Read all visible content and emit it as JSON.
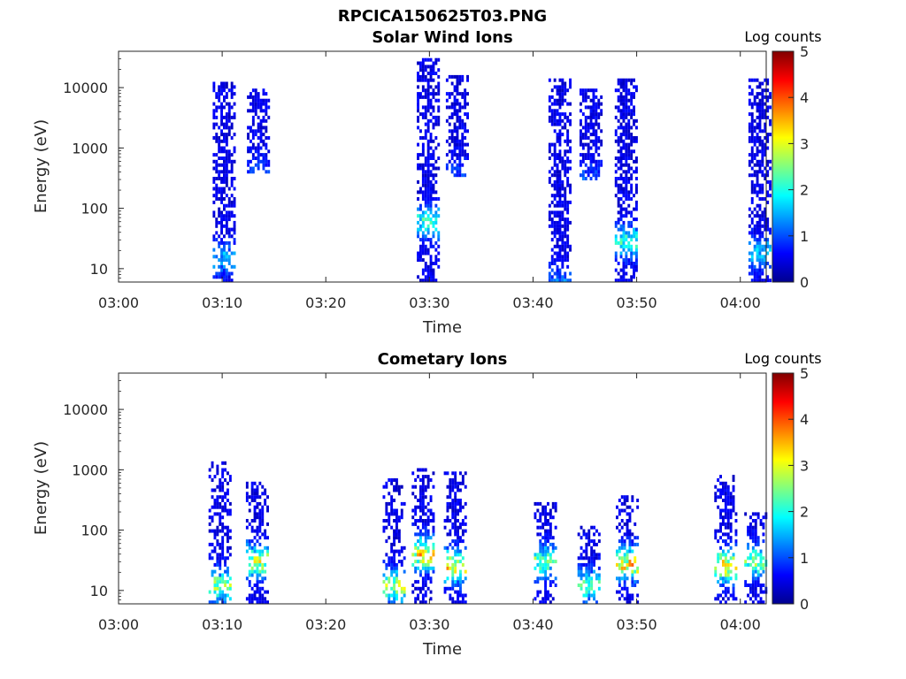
{
  "figure": {
    "title": "RPCICA150625T03.PNG"
  },
  "chart_data": [
    {
      "type": "heatmap",
      "title": "Solar Wind Ions",
      "xlabel": "Time",
      "ylabel": "Energy (eV)",
      "x_tick_labels": [
        "03:00",
        "03:10",
        "03:20",
        "03:30",
        "03:40",
        "03:50",
        "04:00"
      ],
      "y_tick_labels": [
        "10",
        "100",
        "1000",
        "10000"
      ],
      "xlim": [
        "03:00",
        "04:02.5"
      ],
      "ylim": [
        6,
        40000
      ],
      "y_scale": "log",
      "colorbar": {
        "label": "Log counts",
        "range": [
          0,
          5
        ],
        "ticks": [
          "0",
          "1",
          "2",
          "3",
          "4",
          "5"
        ],
        "colormap": "jet"
      },
      "bursts": [
        {
          "time_min": 10.2,
          "energy_range_eV": [
            6,
            13000
          ],
          "peak_log_counts": 1.3,
          "low_energy_peak_eV": 15
        },
        {
          "time_min": 13.5,
          "energy_range_eV": [
            400,
            10000
          ],
          "peak_log_counts": 0.6
        },
        {
          "time_min": 29.9,
          "energy_range_eV": [
            6,
            30000
          ],
          "peak_log_counts": 1.9,
          "low_energy_peak_eV": 60
        },
        {
          "time_min": 32.7,
          "energy_range_eV": [
            350,
            16000
          ],
          "peak_log_counts": 0.5
        },
        {
          "time_min": 42.6,
          "energy_range_eV": [
            6,
            14000
          ],
          "peak_log_counts": 0.9
        },
        {
          "time_min": 45.6,
          "energy_range_eV": [
            300,
            10000
          ],
          "peak_log_counts": 0.6
        },
        {
          "time_min": 49.0,
          "energy_range_eV": [
            6,
            14000
          ],
          "peak_log_counts": 1.9,
          "low_energy_peak_eV": 28
        },
        {
          "time_min": 61.9,
          "energy_range_eV": [
            6,
            14000
          ],
          "peak_log_counts": 1.4,
          "low_energy_peak_eV": 18
        }
      ]
    },
    {
      "type": "heatmap",
      "title": "Cometary Ions",
      "xlabel": "Time",
      "ylabel": "Energy (eV)",
      "x_tick_labels": [
        "03:00",
        "03:10",
        "03:20",
        "03:30",
        "03:40",
        "03:50",
        "04:00"
      ],
      "y_tick_labels": [
        "10",
        "100",
        "1000",
        "10000"
      ],
      "xlim": [
        "03:00",
        "04:02.5"
      ],
      "ylim": [
        6,
        40000
      ],
      "y_scale": "log",
      "colorbar": {
        "label": "Log counts",
        "range": [
          0,
          5
        ],
        "ticks": [
          "0",
          "1",
          "2",
          "3",
          "4",
          "5"
        ],
        "colormap": "jet"
      },
      "bursts": [
        {
          "time_min": 9.8,
          "energy_range_eV": [
            6,
            1300
          ],
          "peak_log_counts": 2.5,
          "low_energy_peak_eV": 12
        },
        {
          "time_min": 13.4,
          "energy_range_eV": [
            6,
            600
          ],
          "peak_log_counts": 3.0,
          "low_energy_peak_eV": 30
        },
        {
          "time_min": 26.6,
          "energy_range_eV": [
            6,
            700
          ],
          "peak_log_counts": 2.8,
          "low_energy_peak_eV": 12
        },
        {
          "time_min": 29.4,
          "energy_range_eV": [
            6,
            1000
          ],
          "peak_log_counts": 3.4,
          "low_energy_peak_eV": 40
        },
        {
          "time_min": 32.5,
          "energy_range_eV": [
            6,
            900
          ],
          "peak_log_counts": 3.2,
          "low_energy_peak_eV": 25
        },
        {
          "time_min": 41.2,
          "energy_range_eV": [
            6,
            300
          ],
          "peak_log_counts": 2.3,
          "low_energy_peak_eV": 30
        },
        {
          "time_min": 45.4,
          "energy_range_eV": [
            6,
            120
          ],
          "peak_log_counts": 2.1,
          "low_energy_peak_eV": 12
        },
        {
          "time_min": 49.1,
          "energy_range_eV": [
            6,
            400
          ],
          "peak_log_counts": 3.5,
          "low_energy_peak_eV": 28
        },
        {
          "time_min": 58.6,
          "energy_range_eV": [
            6,
            800
          ],
          "peak_log_counts": 3.3,
          "low_energy_peak_eV": 25
        },
        {
          "time_min": 61.5,
          "energy_range_eV": [
            6,
            200
          ],
          "peak_log_counts": 2.4,
          "low_energy_peak_eV": 30
        }
      ]
    }
  ]
}
